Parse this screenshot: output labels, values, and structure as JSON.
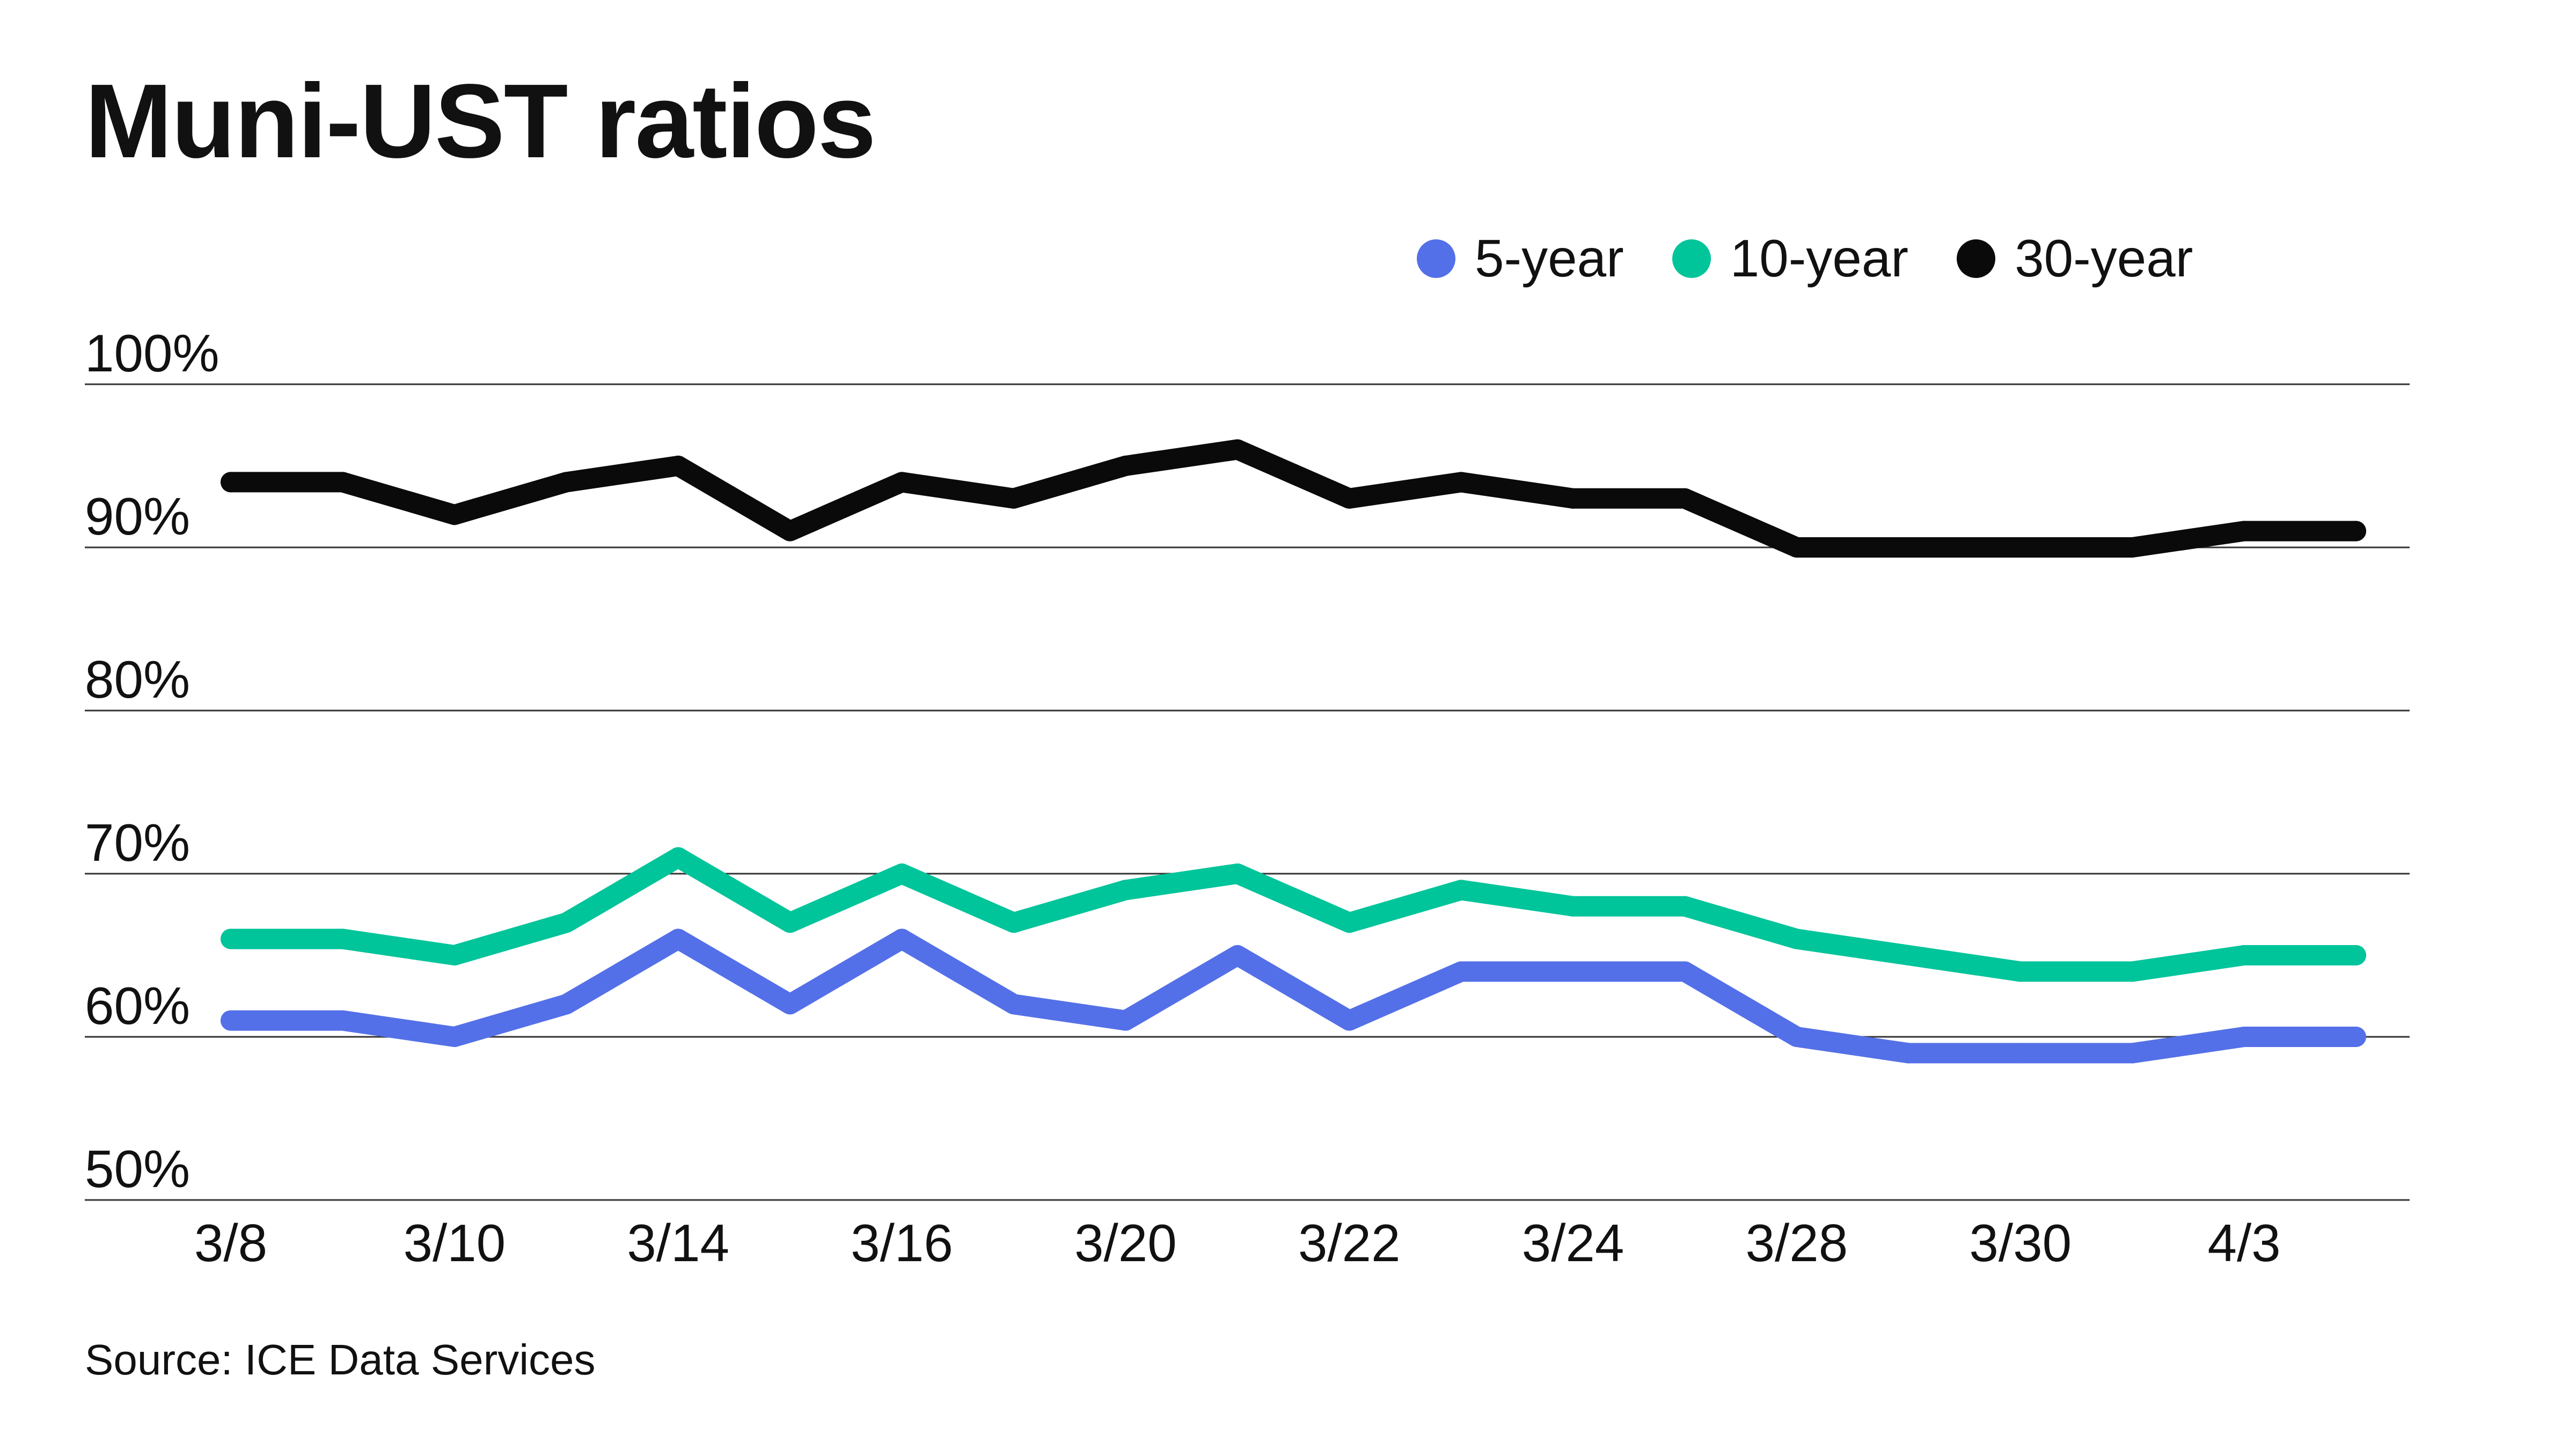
{
  "title": "Muni-UST ratios",
  "source": "Source: ICE Data Services",
  "chart_data": {
    "type": "line",
    "title": "Muni-UST ratios",
    "xlabel": "",
    "ylabel": "",
    "ylim": [
      50,
      100
    ],
    "y_ticks": [
      "50%",
      "60%",
      "70%",
      "80%",
      "90%",
      "100%"
    ],
    "y_tick_values": [
      50,
      60,
      70,
      80,
      90,
      100
    ],
    "x_tick_labels": [
      "3/8",
      "3/10",
      "3/14",
      "3/16",
      "3/20",
      "3/22",
      "3/24",
      "3/28",
      "3/30",
      "4/3"
    ],
    "x_tick_indices": [
      0,
      2,
      4,
      6,
      8,
      10,
      12,
      14,
      16,
      18
    ],
    "grid": true,
    "legend_position": "top-right",
    "series": [
      {
        "name": "5-year",
        "color": "#5470e8",
        "values": [
          61,
          61,
          60,
          62,
          66,
          62,
          66,
          62,
          61,
          65,
          61,
          64,
          64,
          64,
          60,
          59,
          59,
          59,
          60,
          60
        ]
      },
      {
        "name": "10-year",
        "color": "#00c49a",
        "values": [
          66,
          66,
          65,
          67,
          71,
          67,
          70,
          67,
          69,
          70,
          67,
          69,
          68,
          68,
          66,
          65,
          64,
          64,
          65,
          65
        ]
      },
      {
        "name": "30-year",
        "color": "#0a0a0a",
        "values": [
          94,
          94,
          92,
          94,
          95,
          91,
          94,
          93,
          95,
          96,
          93,
          94,
          93,
          93,
          90,
          90,
          90,
          90,
          91,
          91
        ]
      }
    ]
  }
}
